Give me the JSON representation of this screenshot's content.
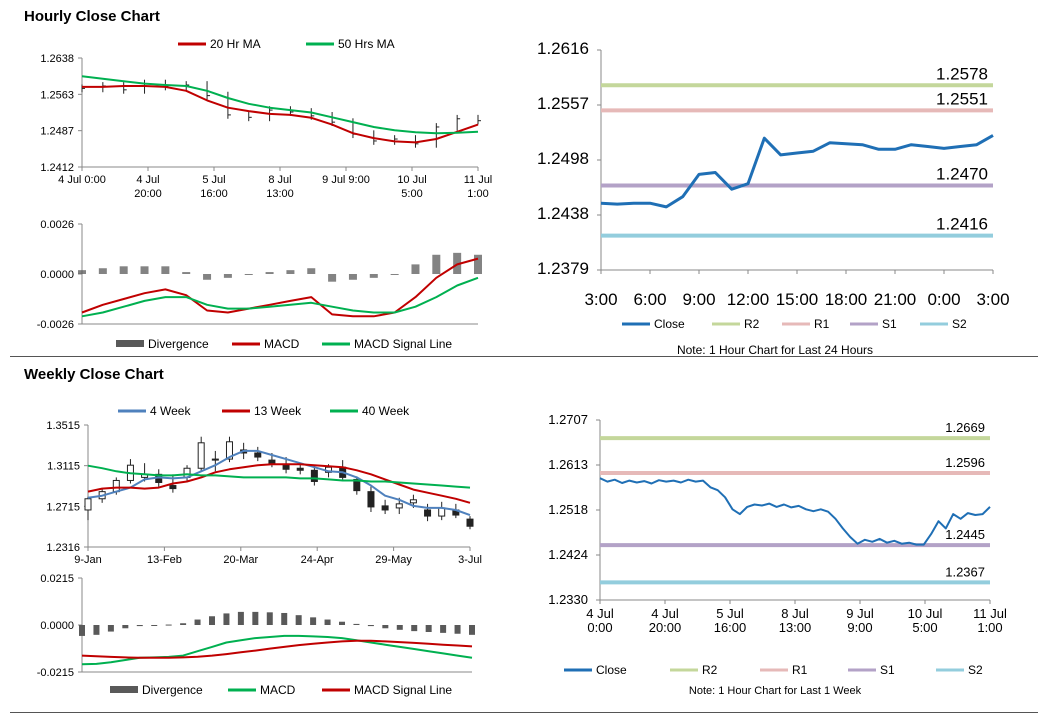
{
  "page": {
    "hourly_title": "Hourly Close Chart",
    "weekly_title": "Weekly Close Chart"
  },
  "chart_data": [
    {
      "id": "hourly-price",
      "type": "line",
      "series": [
        {
          "name": "20 Hr MA",
          "color": "#c00000"
        },
        {
          "name": "50 Hrs MA",
          "color": "#00b050"
        }
      ],
      "ylim": [
        1.2412,
        1.2638
      ],
      "yticks": [
        "1.2638",
        "1.2563",
        "1.2487",
        "1.2412"
      ],
      "xticks": [
        [
          "4 Jul 0:00",
          ""
        ],
        [
          "4 Jul",
          "20:00"
        ],
        [
          "5 Jul",
          "16:00"
        ],
        [
          "8 Jul",
          "13:00"
        ],
        [
          "9 Jul 9:00",
          ""
        ],
        [
          "10 Jul",
          "5:00"
        ],
        [
          "11 Jul",
          "1:00"
        ]
      ],
      "ma20": [
        1.2578,
        1.2578,
        1.258,
        1.258,
        1.2578,
        1.257,
        1.255,
        1.2535,
        1.2528,
        1.2522,
        1.252,
        1.2514,
        1.25,
        1.2482,
        1.2472,
        1.2465,
        1.2463,
        1.247,
        1.2485,
        1.25
      ],
      "ma50": [
        1.26,
        1.2595,
        1.259,
        1.2585,
        1.2582,
        1.258,
        1.257,
        1.2555,
        1.2543,
        1.2535,
        1.253,
        1.2525,
        1.2515,
        1.2505,
        1.2495,
        1.2488,
        1.2484,
        1.2482,
        1.2483,
        1.2485
      ],
      "close": [
        1.2575,
        1.258,
        1.2572,
        1.2585,
        1.2579,
        1.2582,
        1.256,
        1.252,
        1.2515,
        1.253,
        1.2526,
        1.2518,
        1.2505,
        1.248,
        1.2466,
        1.247,
        1.246,
        1.2495,
        1.2512,
        1.2508
      ]
    },
    {
      "id": "hourly-macd",
      "type": "line",
      "series": [
        {
          "name": "Divergence",
          "color": "#595959"
        },
        {
          "name": "MACD",
          "color": "#c00000"
        },
        {
          "name": "MACD Signal Line",
          "color": "#00b050"
        }
      ],
      "ylim": [
        -0.0026,
        0.0026
      ],
      "yticks": [
        "0.0026",
        "0.0000",
        "-0.0026"
      ],
      "macd": [
        -0.002,
        -0.0016,
        -0.0013,
        -0.001,
        -0.0008,
        -0.0011,
        -0.0019,
        -0.002,
        -0.0018,
        -0.0016,
        -0.0014,
        -0.0012,
        -0.0021,
        -0.0022,
        -0.0022,
        -0.002,
        -0.0012,
        -0.0002,
        0.0005,
        0.0008
      ],
      "signal": [
        -0.0022,
        -0.002,
        -0.0017,
        -0.0014,
        -0.0012,
        -0.0012,
        -0.0016,
        -0.0018,
        -0.0018,
        -0.0017,
        -0.0016,
        -0.0015,
        -0.0017,
        -0.0019,
        -0.002,
        -0.002,
        -0.0017,
        -0.0012,
        -0.0006,
        -0.0002
      ],
      "divergence": [
        0.0002,
        0.0003,
        0.0004,
        0.0004,
        0.0004,
        0.0001,
        -0.0003,
        -0.0002,
        0.0,
        0.0001,
        0.0002,
        0.0003,
        -0.0004,
        -0.0003,
        -0.0002,
        0.0,
        0.0005,
        0.001,
        0.0011,
        0.001
      ]
    },
    {
      "id": "hourly-24h",
      "type": "line",
      "ylim": [
        1.2379,
        1.2616
      ],
      "yticks": [
        "1.2616",
        "1.2557",
        "1.2498",
        "1.2438",
        "1.2379"
      ],
      "xticks": [
        "3:00",
        "6:00",
        "9:00",
        "12:00",
        "15:00",
        "18:00",
        "21:00",
        "0:00",
        "3:00"
      ],
      "levels": [
        {
          "name": "R2",
          "value": 1.2578,
          "label": "1.2578",
          "color": "#c4d79b"
        },
        {
          "name": "R1",
          "value": 1.2551,
          "label": "1.2551",
          "color": "#e6b9b8"
        },
        {
          "name": "S1",
          "value": 1.247,
          "label": "1.2470",
          "color": "#b3a2c7"
        },
        {
          "name": "S2",
          "value": 1.2416,
          "label": "1.2416",
          "color": "#93cddd"
        }
      ],
      "close_name": "Close",
      "close_color": "#1f6fb5",
      "close": [
        1.2451,
        1.245,
        1.2451,
        1.2451,
        1.2447,
        1.2458,
        1.2482,
        1.2484,
        1.2466,
        1.2472,
        1.2521,
        1.2503,
        1.2505,
        1.2507,
        1.2516,
        1.2515,
        1.2514,
        1.2509,
        1.2509,
        1.2514,
        1.2512,
        1.251,
        1.2512,
        1.2514,
        1.2524
      ],
      "note": "Note: 1 Hour Chart for Last 24 Hours"
    },
    {
      "id": "weekly-price",
      "type": "line",
      "series": [
        {
          "name": "4 Week",
          "color": "#4f81bd"
        },
        {
          "name": "13 Week",
          "color": "#c00000"
        },
        {
          "name": "40 Week",
          "color": "#00b050"
        }
      ],
      "ylim": [
        1.2316,
        1.3515
      ],
      "yticks": [
        "1.3515",
        "1.3115",
        "1.2715",
        "1.2316"
      ],
      "xticks": [
        "9-Jan",
        "13-Feb",
        "20-Mar",
        "24-Apr",
        "29-May",
        "3-Jul"
      ],
      "ohlc": [
        [
          1.268,
          1.281,
          1.258,
          1.279
        ],
        [
          1.279,
          1.289,
          1.275,
          1.286
        ],
        [
          1.286,
          1.3,
          1.283,
          1.297
        ],
        [
          1.297,
          1.318,
          1.294,
          1.312
        ],
        [
          1.3,
          1.314,
          1.296,
          1.303
        ],
        [
          1.303,
          1.308,
          1.29,
          1.295
        ],
        [
          1.292,
          1.303,
          1.285,
          1.289
        ],
        [
          1.3,
          1.312,
          1.296,
          1.309
        ],
        [
          1.309,
          1.34,
          1.306,
          1.334
        ],
        [
          1.317,
          1.326,
          1.306,
          1.318
        ],
        [
          1.318,
          1.34,
          1.315,
          1.335
        ],
        [
          1.327,
          1.334,
          1.318,
          1.324
        ],
        [
          1.324,
          1.33,
          1.316,
          1.32
        ],
        [
          1.317,
          1.324,
          1.31,
          1.314
        ],
        [
          1.312,
          1.32,
          1.304,
          1.308
        ],
        [
          1.309,
          1.314,
          1.303,
          1.307
        ],
        [
          1.307,
          1.312,
          1.292,
          1.296
        ],
        [
          1.305,
          1.313,
          1.3,
          1.31
        ],
        [
          1.31,
          1.317,
          1.298,
          1.3
        ],
        [
          1.298,
          1.301,
          1.283,
          1.287
        ],
        [
          1.286,
          1.291,
          1.266,
          1.271
        ],
        [
          1.272,
          1.278,
          1.264,
          1.268
        ],
        [
          1.27,
          1.28,
          1.264,
          1.274
        ],
        [
          1.275,
          1.283,
          1.27,
          1.278
        ],
        [
          1.268,
          1.274,
          1.257,
          1.262
        ],
        [
          1.262,
          1.276,
          1.258,
          1.27
        ],
        [
          1.268,
          1.274,
          1.26,
          1.263
        ],
        [
          1.259,
          1.262,
          1.249,
          1.252
        ]
      ],
      "ma4": [
        1.28,
        1.282,
        1.286,
        1.29,
        1.298,
        1.3,
        1.299,
        1.3,
        1.306,
        1.312,
        1.32,
        1.326,
        1.326,
        1.322,
        1.318,
        1.314,
        1.31,
        1.306,
        1.305,
        1.3,
        1.292,
        1.282,
        1.278,
        1.272,
        1.27,
        1.27,
        1.268,
        1.263
      ],
      "ma13": [
        1.286,
        1.289,
        1.29,
        1.29,
        1.289,
        1.29,
        1.294,
        1.296,
        1.3,
        1.305,
        1.308,
        1.31,
        1.312,
        1.313,
        1.313,
        1.313,
        1.312,
        1.311,
        1.31,
        1.307,
        1.303,
        1.298,
        1.293,
        1.288,
        1.285,
        1.282,
        1.279,
        1.275
      ],
      "ma40": [
        1.3115,
        1.309,
        1.306,
        1.304,
        1.303,
        1.302,
        1.302,
        1.303,
        1.302,
        1.302,
        1.301,
        1.3,
        1.3,
        1.3,
        1.3,
        1.299,
        1.299,
        1.298,
        1.297,
        1.297,
        1.296,
        1.296,
        1.295,
        1.294,
        1.293,
        1.292,
        1.291,
        1.29
      ]
    },
    {
      "id": "weekly-macd",
      "type": "line",
      "series": [
        {
          "name": "Divergence",
          "color": "#595959"
        },
        {
          "name": "MACD",
          "color": "#00b050"
        },
        {
          "name": "MACD Signal Line",
          "color": "#c00000"
        }
      ],
      "ylim": [
        -0.0215,
        0.0215
      ],
      "yticks": [
        "0.0215",
        "0.0000",
        "-0.0215"
      ],
      "macd": [
        -0.018,
        -0.0178,
        -0.017,
        -0.016,
        -0.015,
        -0.0148,
        -0.0146,
        -0.014,
        -0.012,
        -0.01,
        -0.008,
        -0.007,
        -0.006,
        -0.0055,
        -0.005,
        -0.005,
        -0.0052,
        -0.0055,
        -0.006,
        -0.007,
        -0.008,
        -0.009,
        -0.01,
        -0.011,
        -0.012,
        -0.013,
        -0.014,
        -0.015
      ],
      "signal": [
        -0.014,
        -0.0143,
        -0.0146,
        -0.0148,
        -0.015,
        -0.015,
        -0.015,
        -0.0148,
        -0.0145,
        -0.014,
        -0.0133,
        -0.0125,
        -0.0117,
        -0.0108,
        -0.01,
        -0.0092,
        -0.0086,
        -0.008,
        -0.0075,
        -0.0072,
        -0.0072,
        -0.0075,
        -0.0078,
        -0.0082,
        -0.0086,
        -0.009,
        -0.0094,
        -0.0098
      ],
      "divergence": [
        -0.005,
        -0.0045,
        -0.003,
        -0.0015,
        -0.0005,
        0.0,
        0.0002,
        0.0008,
        0.0025,
        0.004,
        0.0053,
        0.006,
        0.006,
        0.0058,
        0.0055,
        0.0045,
        0.0035,
        0.0025,
        0.0015,
        0.0005,
        -0.0005,
        -0.0015,
        -0.0022,
        -0.0028,
        -0.0032,
        -0.0036,
        -0.004,
        -0.0045
      ]
    },
    {
      "id": "weekly-hourly-week",
      "type": "line",
      "ylim": [
        1.233,
        1.2707
      ],
      "yticks": [
        "1.2707",
        "1.2613",
        "1.2518",
        "1.2424",
        "1.2330"
      ],
      "xticks": [
        [
          "4 Jul",
          "0:00"
        ],
        [
          "4 Jul",
          "20:00"
        ],
        [
          "5 Jul",
          "16:00"
        ],
        [
          "8 Jul",
          "13:00"
        ],
        [
          "9 Jul",
          "9:00"
        ],
        [
          "10 Jul",
          "5:00"
        ],
        [
          "11 Jul",
          "1:00"
        ]
      ],
      "levels": [
        {
          "name": "R2",
          "value": 1.2669,
          "label": "1.2669",
          "color": "#c4d79b"
        },
        {
          "name": "R1",
          "value": 1.2596,
          "label": "1.2596",
          "color": "#e6b9b8"
        },
        {
          "name": "S1",
          "value": 1.2445,
          "label": "1.2445",
          "color": "#b3a2c7"
        },
        {
          "name": "S2",
          "value": 1.2367,
          "label": "1.2367",
          "color": "#93cddd"
        }
      ],
      "close_name": "Close",
      "close_color": "#1f6fb5",
      "close": [
        1.2585,
        1.2578,
        1.2582,
        1.2575,
        1.258,
        1.2576,
        1.2579,
        1.2574,
        1.2581,
        1.2578,
        1.258,
        1.2576,
        1.2582,
        1.2578,
        1.258,
        1.2566,
        1.256,
        1.2545,
        1.252,
        1.251,
        1.2525,
        1.253,
        1.2528,
        1.2532,
        1.2525,
        1.253,
        1.2524,
        1.2527,
        1.252,
        1.2516,
        1.252,
        1.2515,
        1.25,
        1.248,
        1.2462,
        1.2448,
        1.2456,
        1.2452,
        1.2458,
        1.245,
        1.2454,
        1.2448,
        1.245,
        1.2446,
        1.2446,
        1.2468,
        1.2495,
        1.248,
        1.251,
        1.25,
        1.2512,
        1.2508,
        1.251,
        1.2525
      ],
      "note": "Note: 1 Hour Chart for Last 1 Week"
    }
  ]
}
